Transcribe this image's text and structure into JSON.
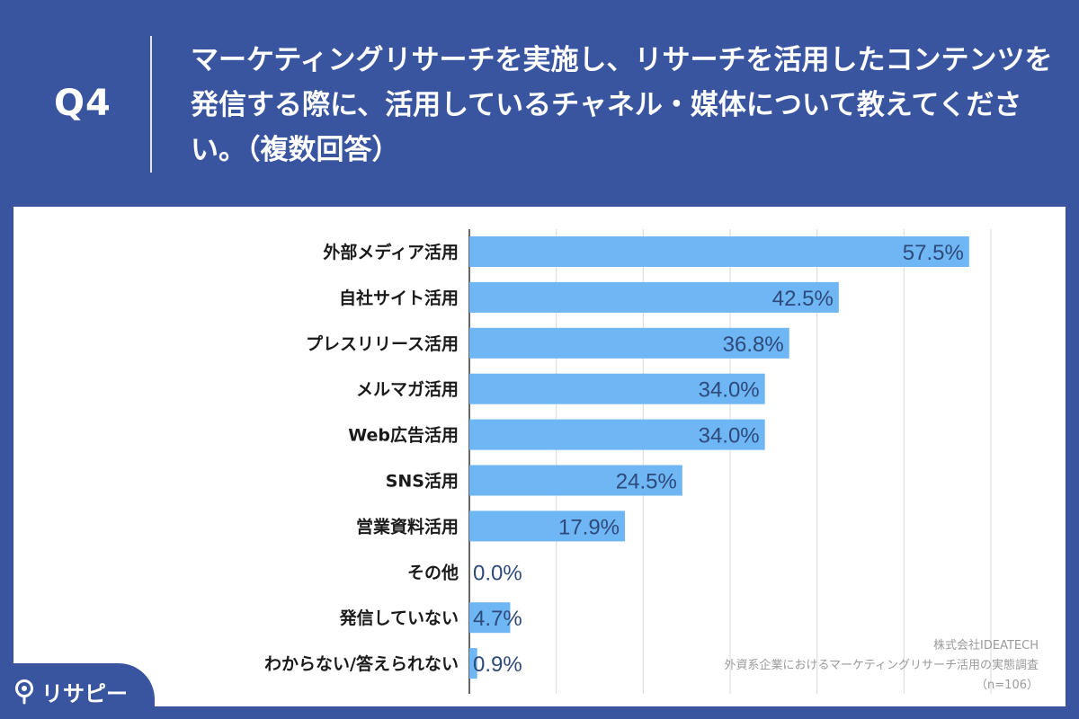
{
  "header": {
    "question_label": "Q4",
    "title": "マーケティングリサーチを実施し、リサーチを活用したコンテンツを発信する際に、活用しているチャネル・媒体について教えてください。（複数回答）"
  },
  "chart_data": {
    "type": "bar",
    "orientation": "horizontal",
    "categories": [
      "外部メディア活用",
      "自社サイト活用",
      "プレスリリース活用",
      "メルマガ活用",
      "Web広告活用",
      "SNS活用",
      "営業資料活用",
      "その他",
      "発信していない",
      "わからない/答えられない"
    ],
    "values": [
      57.5,
      42.5,
      36.8,
      34.0,
      34.0,
      24.5,
      17.9,
      0.0,
      4.7,
      0.9
    ],
    "value_labels": [
      "57.5%",
      "42.5%",
      "36.8%",
      "34.0%",
      "34.0%",
      "24.5%",
      "17.9%",
      "0.0%",
      "4.7%",
      "0.9%"
    ],
    "xlim": [
      0,
      60
    ],
    "grid": true,
    "bar_color": "#6fb6f5"
  },
  "source": {
    "line1": "株式会社IDEATECH",
    "line2": "外資系企業におけるマーケティングリサーチ活用の実態調査",
    "line3": "（n=106）"
  },
  "logo": {
    "text": "リサピー"
  },
  "colors": {
    "background": "#3a55a0",
    "panel": "#ffffff",
    "value_text": "#2d4a7a"
  }
}
